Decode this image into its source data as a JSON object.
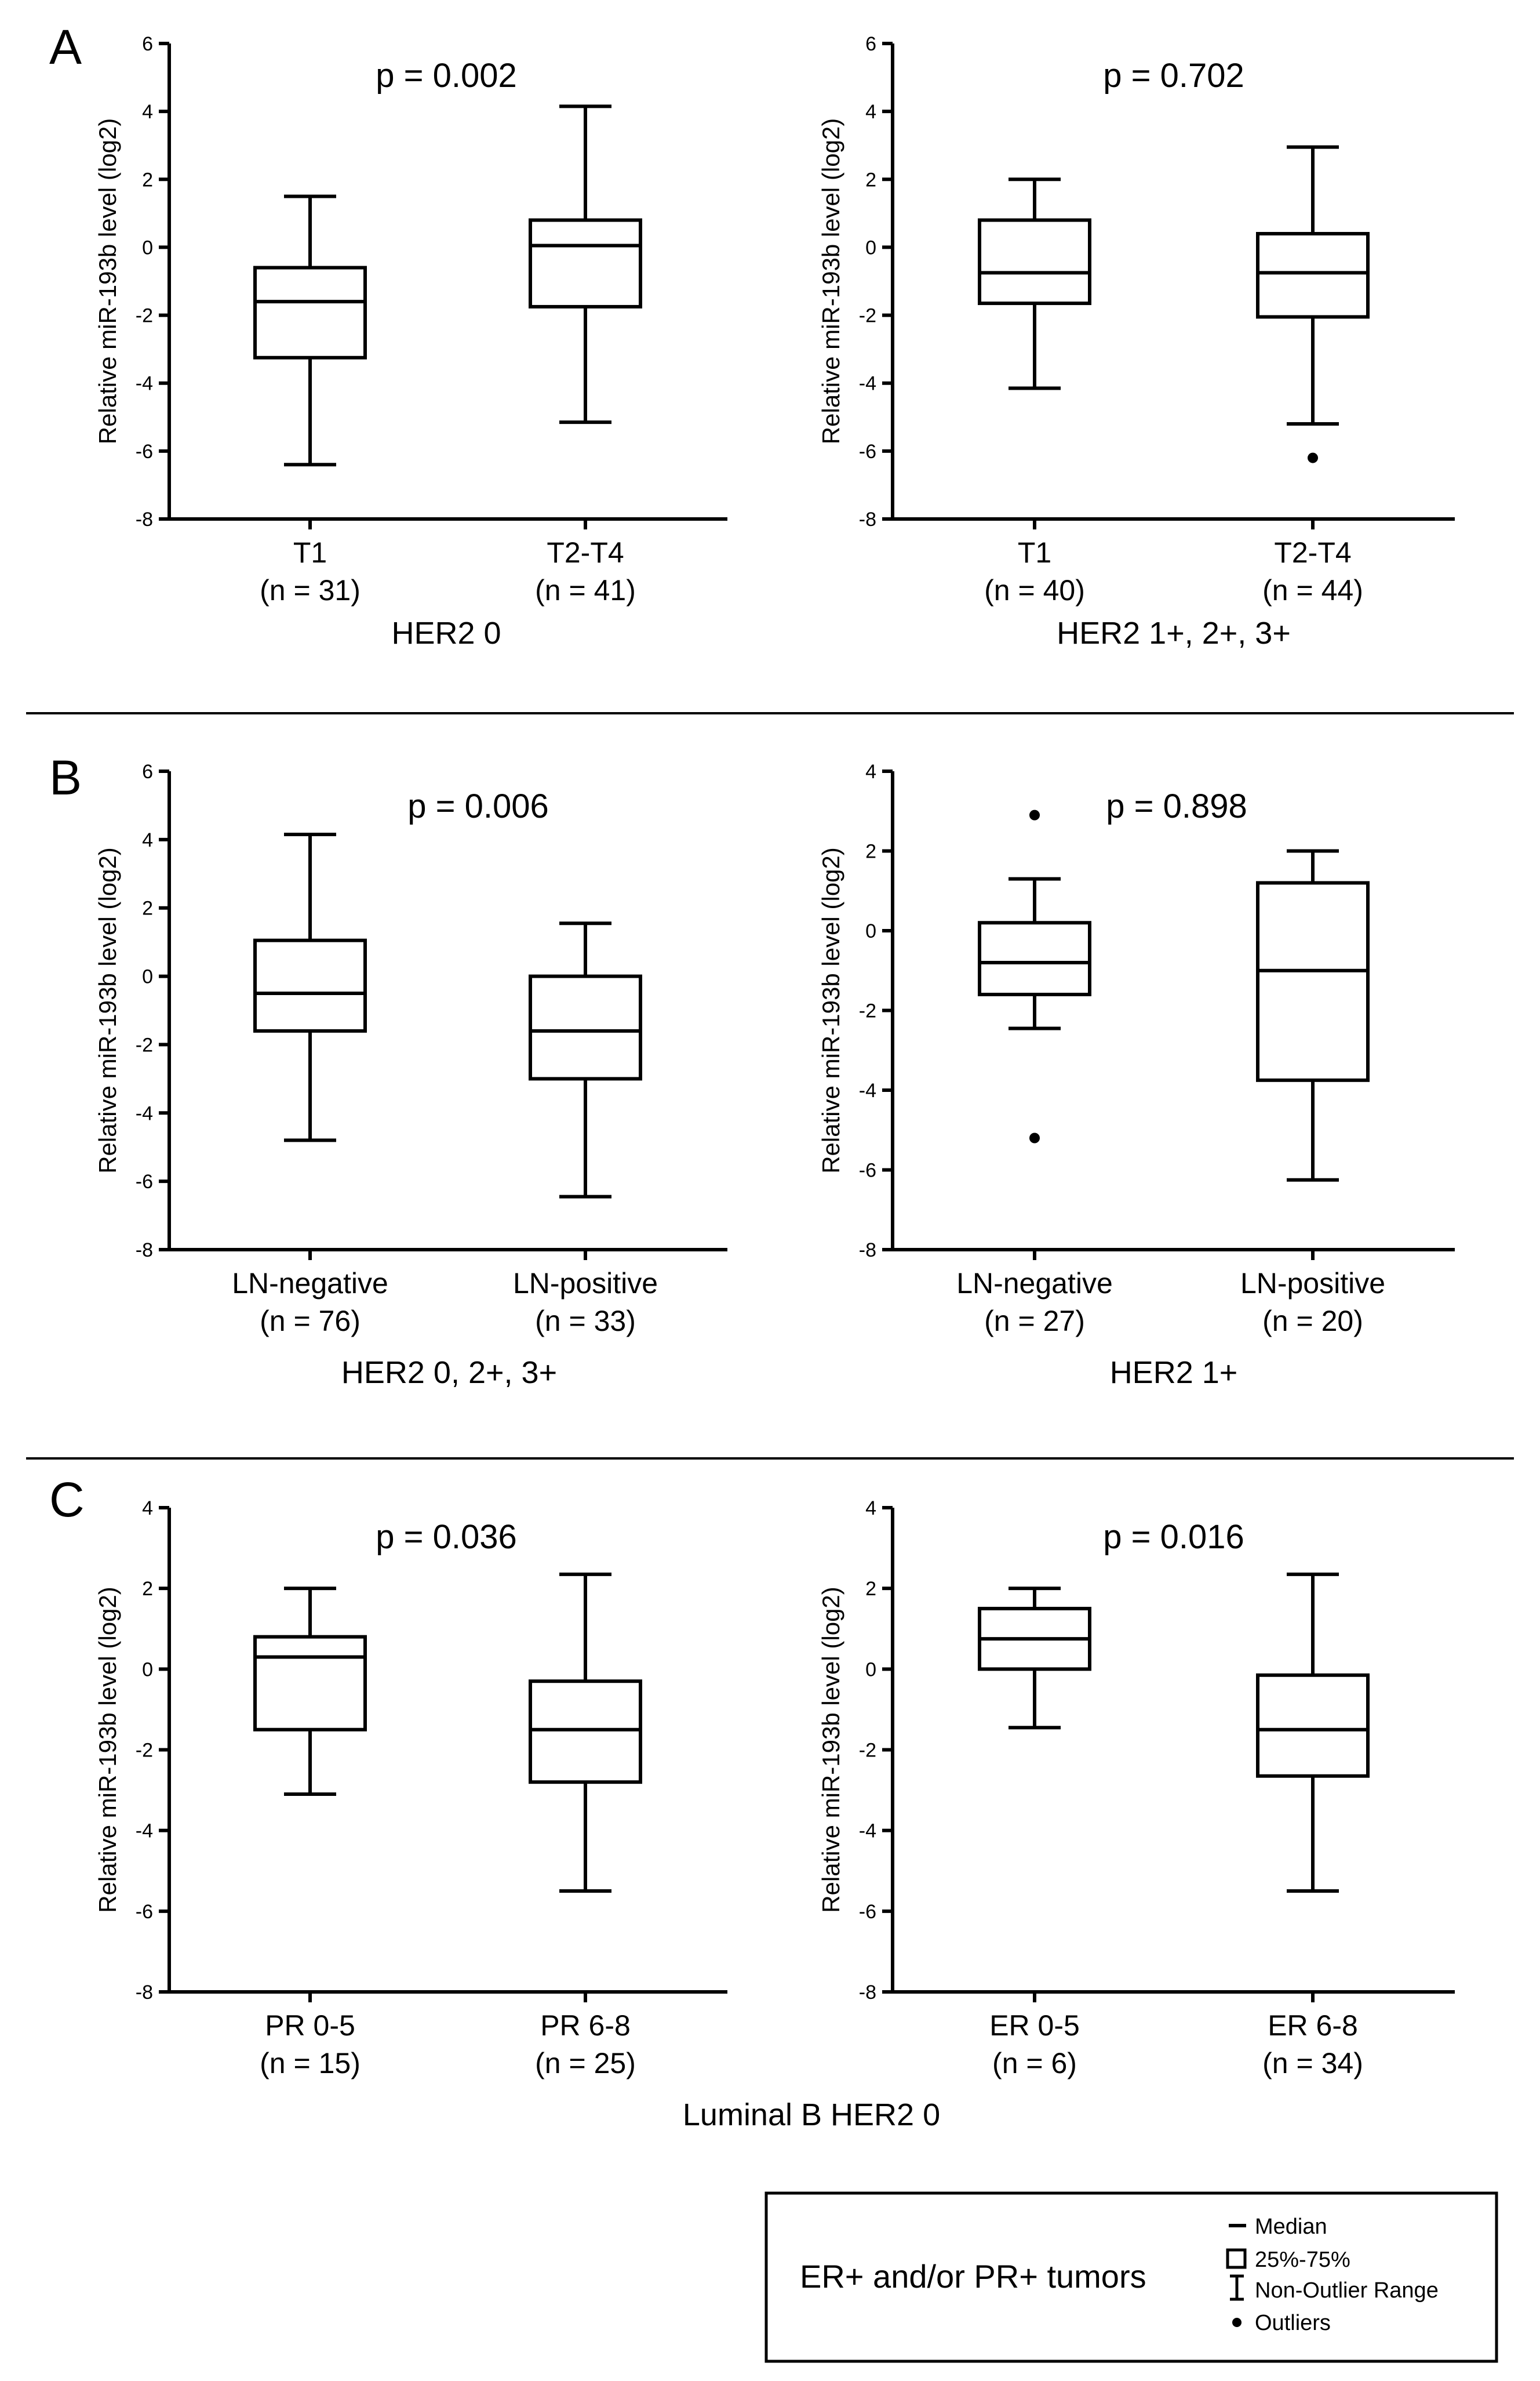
{
  "legend": {
    "title": "ER+ and/or PR+ tumors",
    "items": [
      {
        "symbol": "median-line",
        "label": "Median"
      },
      {
        "symbol": "box",
        "label": "25%-75%"
      },
      {
        "symbol": "whisker",
        "label": "Non-Outlier Range"
      },
      {
        "symbol": "dot",
        "label": "Outliers"
      }
    ]
  },
  "chart_data": [
    {
      "type": "boxplot",
      "panel": "A",
      "pvalue": "p = 0.002",
      "group": "HER2 0",
      "ylabel": "Relative miR-193b level (log2)",
      "ylim": [
        -8,
        6
      ],
      "yticks": [
        -8,
        -6,
        -4,
        -2,
        0,
        2,
        4,
        6
      ],
      "grid": false,
      "categories": [
        {
          "label": "T1",
          "n": "(n = 31)",
          "min": -6.4,
          "q1": -3.25,
          "median": -1.6,
          "q3": -0.6,
          "max": 1.5,
          "outliers": []
        },
        {
          "label": "T2-T4",
          "n": "(n = 41)",
          "min": -5.15,
          "q1": -1.75,
          "median": 0.05,
          "q3": 0.8,
          "max": 4.15,
          "outliers": []
        }
      ]
    },
    {
      "type": "boxplot",
      "panel": "",
      "pvalue": "p = 0.702",
      "group": "HER2 1+, 2+, 3+",
      "ylabel": "Relative miR-193b level (log2)",
      "ylim": [
        -8,
        6
      ],
      "yticks": [
        -8,
        -6,
        -4,
        -2,
        0,
        2,
        4,
        6
      ],
      "grid": false,
      "categories": [
        {
          "label": "T1",
          "n": "(n = 40)",
          "min": -4.15,
          "q1": -1.65,
          "median": -0.75,
          "q3": 0.8,
          "max": 2.0,
          "outliers": []
        },
        {
          "label": "T2-T4",
          "n": "(n = 44)",
          "min": -5.2,
          "q1": -2.05,
          "median": -0.75,
          "q3": 0.4,
          "max": 2.95,
          "outliers": [
            -6.2
          ]
        }
      ]
    },
    {
      "type": "boxplot",
      "panel": "B",
      "pvalue": "p = 0.006",
      "group": "HER2 0, 2+, 3+",
      "ylabel": "Relative miR-193b level (log2)",
      "ylim": [
        -8,
        6
      ],
      "yticks": [
        -8,
        -6,
        -4,
        -2,
        0,
        2,
        4,
        6
      ],
      "grid": false,
      "categories": [
        {
          "label": "LN-negative",
          "n": "(n = 76)",
          "min": -4.8,
          "q1": -1.6,
          "median": -0.5,
          "q3": 1.05,
          "max": 4.15,
          "outliers": []
        },
        {
          "label": "LN-positive",
          "n": "(n = 33)",
          "min": -6.45,
          "q1": -3.0,
          "median": -1.6,
          "q3": 0.0,
          "max": 1.55,
          "outliers": []
        }
      ]
    },
    {
      "type": "boxplot",
      "panel": "",
      "pvalue": "p = 0.898",
      "group": "HER2 1+",
      "ylabel": "Relative miR-193b level (log2)",
      "ylim": [
        -8,
        4
      ],
      "yticks": [
        -8,
        -6,
        -4,
        -2,
        0,
        2,
        4
      ],
      "grid": false,
      "categories": [
        {
          "label": "LN-negative",
          "n": "(n = 27)",
          "min": -2.45,
          "q1": -1.6,
          "median": -0.8,
          "q3": 0.2,
          "max": 1.3,
          "outliers": [
            2.9,
            -5.2
          ]
        },
        {
          "label": "LN-positive",
          "n": "(n = 20)",
          "min": -6.25,
          "q1": -3.75,
          "median": -1.0,
          "q3": 1.2,
          "max": 2.0,
          "outliers": []
        }
      ]
    },
    {
      "type": "boxplot",
      "panel": "C",
      "pvalue": "p = 0.036",
      "group": "",
      "ylabel": "Relative miR-193b level (log2)",
      "ylim": [
        -8,
        4
      ],
      "yticks": [
        -8,
        -6,
        -4,
        -2,
        0,
        2,
        4
      ],
      "grid": false,
      "categories": [
        {
          "label": "PR 0-5",
          "n": "(n = 15)",
          "min": -3.1,
          "q1": -1.5,
          "median": 0.3,
          "q3": 0.8,
          "max": 2.0,
          "outliers": []
        },
        {
          "label": "PR 6-8",
          "n": "(n = 25)",
          "min": -5.5,
          "q1": -2.8,
          "median": -1.5,
          "q3": -0.3,
          "max": 2.35,
          "outliers": []
        }
      ]
    },
    {
      "type": "boxplot",
      "panel": "",
      "pvalue": "p = 0.016",
      "group": "",
      "ylabel": "Relative miR-193b level (log2)",
      "ylim": [
        -8,
        4
      ],
      "yticks": [
        -8,
        -6,
        -4,
        -2,
        0,
        2,
        4
      ],
      "grid": false,
      "categories": [
        {
          "label": "ER 0-5",
          "n": "(n = 6)",
          "min": -1.45,
          "q1": 0.0,
          "median": 0.75,
          "q3": 1.5,
          "max": 2.0,
          "outliers": []
        },
        {
          "label": "ER 6-8",
          "n": "(n = 34)",
          "min": -5.5,
          "q1": -2.65,
          "median": -1.5,
          "q3": -0.15,
          "max": 2.35,
          "outliers": []
        }
      ]
    }
  ],
  "row_group_label_C": "Luminal B HER2 0"
}
